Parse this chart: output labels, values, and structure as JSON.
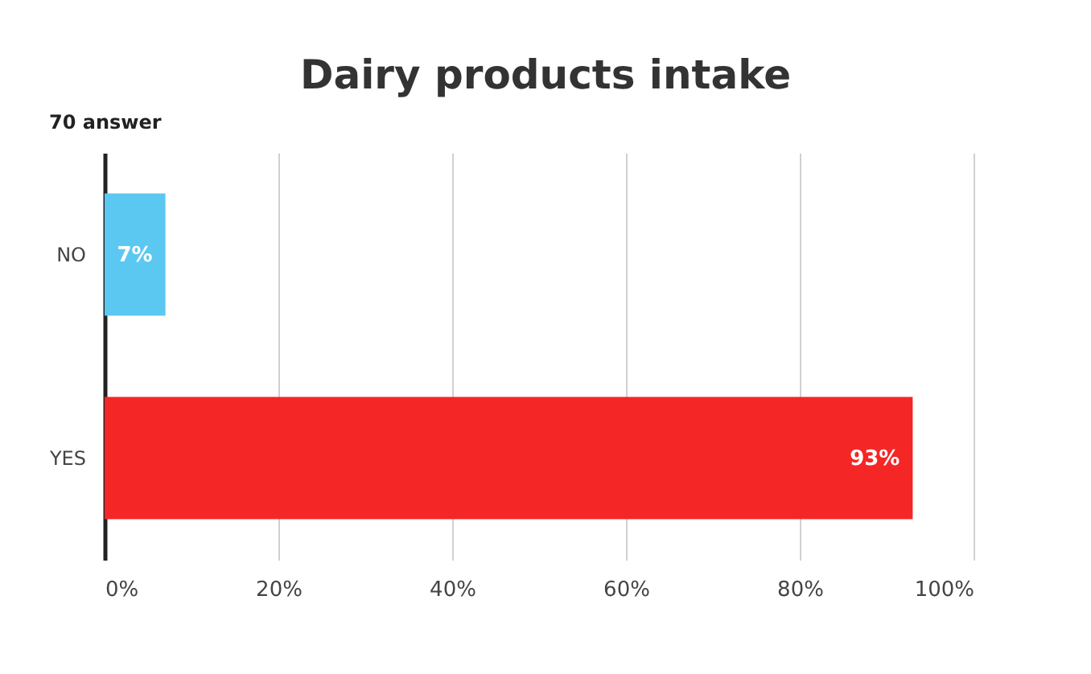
{
  "chart_data": {
    "type": "bar",
    "orientation": "horizontal",
    "title": "Dairy products intake",
    "subtitle": "70 answer",
    "categories": [
      "NO",
      "YES"
    ],
    "values": [
      7,
      93
    ],
    "colors": [
      "#5bc8f2",
      "#f52626"
    ],
    "value_labels": [
      "7%",
      "93%"
    ],
    "xlim": [
      0,
      100
    ],
    "xticks": [
      {
        "value": 0,
        "label": "0%"
      },
      {
        "value": 20,
        "label": "20%"
      },
      {
        "value": 40,
        "label": "40%"
      },
      {
        "value": 60,
        "label": "60%"
      },
      {
        "value": 80,
        "label": "80%"
      },
      {
        "value": 100,
        "label": "100%"
      }
    ],
    "grid": "x",
    "legend": false
  }
}
